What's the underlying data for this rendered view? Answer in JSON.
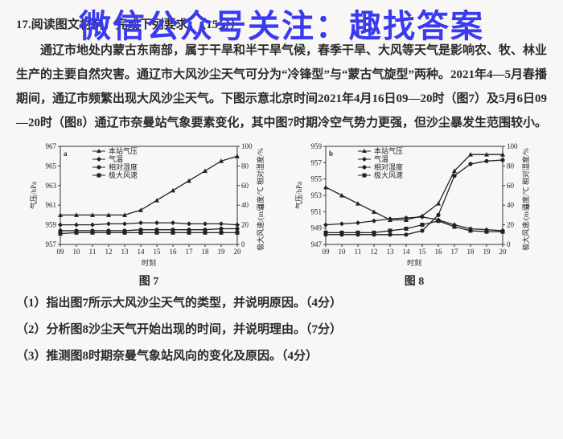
{
  "watermark": "微信公众号关注：趣找答案",
  "heading": "17.阅读图文材料，完成下列要求。（15分）",
  "body1": "　　通辽市地处内蒙古东南部，属于干旱和半干旱气候，春季干旱、大风等天气是影响农、牧、林业生产的主要自然灾害。通辽市大风沙尘天气可分为“冷锋型”与“蒙古气旋型”两种。2021年4—5月春播期间，通辽市频繁出现大风沙尘天气。下图示意北京时间2021年4月16日09—20时（图7）及5月6日09—20时（图8）通辽市奈曼站气象要素变化，其中图7时期冷空气势力更强，但沙尘暴发生范围较小。",
  "legend": {
    "pressure": "本站气压",
    "temp": "气温",
    "rh": "相对湿度",
    "wind": "极大风速"
  },
  "chart7": {
    "tag": "a",
    "x": [
      9,
      10,
      11,
      12,
      13,
      14,
      15,
      16,
      17,
      18,
      19,
      20
    ],
    "xlabel": "时刻",
    "left_label": "气压/hPa",
    "right_label": "温度/℃ 相对湿度/%\\n极大风速/(m/s)",
    "left_ticks": [
      957,
      959,
      961,
      963,
      965,
      967
    ],
    "right_ticks": [
      0,
      20,
      40,
      60,
      80,
      100
    ],
    "pressure": [
      960,
      960,
      960,
      960,
      960,
      960.5,
      961.5,
      962.5,
      963.5,
      964.5,
      965.5,
      966
    ],
    "temp": [
      20,
      20,
      20,
      21,
      21,
      22,
      22,
      22,
      21,
      21,
      21,
      20
    ],
    "rh": [
      14,
      14,
      14,
      14,
      14,
      15,
      15,
      15,
      15,
      15,
      16,
      16
    ],
    "wind": [
      11,
      12,
      12,
      12,
      12,
      12,
      12,
      12,
      12,
      12,
      12,
      12
    ],
    "colors": {
      "line": "#222",
      "bg": "#f9f7f5"
    }
  },
  "chart8": {
    "tag": "b",
    "x": [
      9,
      10,
      11,
      12,
      13,
      14,
      15,
      16,
      17,
      18,
      19,
      20
    ],
    "xlabel": "时刻",
    "left_label": "气压/hPa",
    "right_label": "温度/℃ 相对湿度/%\\n极大风速/(m/s)",
    "left_ticks": [
      947,
      949,
      951,
      953,
      955,
      957,
      959
    ],
    "right_ticks": [
      0,
      20,
      40,
      60,
      80,
      100
    ],
    "pressure": [
      954,
      953,
      952,
      951,
      950,
      950,
      950.5,
      952,
      956,
      958,
      958,
      958
    ],
    "temp": [
      20,
      21,
      22,
      24,
      26,
      27,
      28,
      25,
      20,
      16,
      15,
      14
    ],
    "rh": [
      10,
      10,
      10,
      10,
      10,
      10,
      14,
      30,
      70,
      82,
      85,
      86
    ],
    "wind": [
      12,
      12,
      12,
      12,
      14,
      16,
      20,
      24,
      18,
      14,
      13,
      13
    ],
    "colors": {
      "line": "#222",
      "bg": "#f9f7f5"
    }
  },
  "caption7": "图 7",
  "caption8": "图 8",
  "q1": "（1）指出图7所示大风沙尘天气的类型，并说明原因。（4分）",
  "q2": "（2）分析图8沙尘天气开始出现的时间，并说明理由。（7分）",
  "q3": "（3）推测图8时期奈曼气象站风向的变化及原因。（4分）"
}
